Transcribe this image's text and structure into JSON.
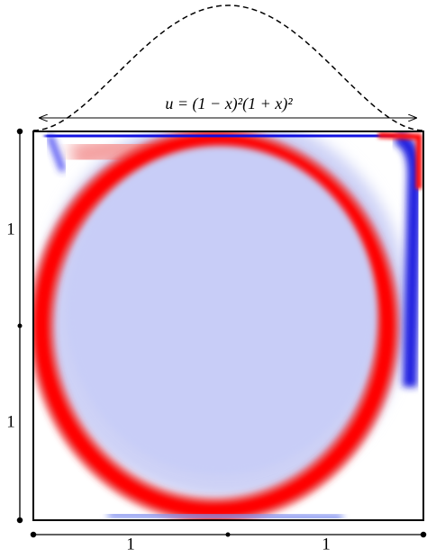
{
  "lid_velocity_label": "u = (1 − x)²(1 + x)²",
  "dimensions": {
    "left_upper": "1",
    "left_lower": "1",
    "bottom_left": "1",
    "bottom_right": "1"
  }
}
